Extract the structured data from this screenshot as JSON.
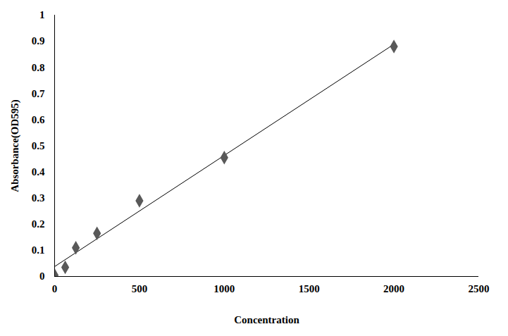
{
  "chart_data": {
    "type": "scatter",
    "xlabel": "Concentration",
    "ylabel": "Absorbance(OD595)",
    "x": [
      0,
      62.5,
      125,
      250,
      500,
      1000,
      2000
    ],
    "series": [
      {
        "color": "#595959",
        "marker": "diamond",
        "line_style": "solid",
        "values": [
          0.005,
          0.035,
          0.11,
          0.165,
          0.29,
          0.455,
          0.88
        ]
      }
    ],
    "xlim": [
      0,
      2500
    ],
    "xticks": [
      0,
      500,
      1000,
      1500,
      2000,
      2500
    ],
    "ylim": [
      0,
      1
    ],
    "yticks": [
      0,
      0.1,
      0.2,
      0.3,
      0.4,
      0.5,
      0.6,
      0.7,
      0.8,
      0.9,
      1
    ],
    "grid": false
  }
}
